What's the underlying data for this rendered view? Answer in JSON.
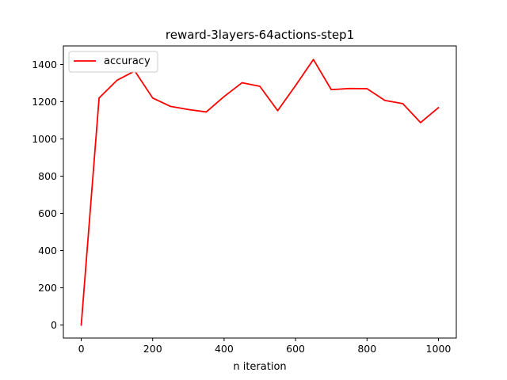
{
  "chart_data": {
    "type": "line",
    "title": "reward-3layers-64actions-step1",
    "xlabel": "n iteration",
    "ylabel": "",
    "xlim": [
      -50,
      1050
    ],
    "ylim": [
      -70,
      1500
    ],
    "x_ticks": [
      0,
      200,
      400,
      600,
      800,
      1000
    ],
    "y_ticks": [
      0,
      200,
      400,
      600,
      800,
      1000,
      1200,
      1400
    ],
    "grid": false,
    "legend_position": "upper-left",
    "series": [
      {
        "name": "accuracy",
        "color": "#ff0000",
        "x": [
          0,
          50,
          100,
          150,
          200,
          250,
          300,
          350,
          400,
          450,
          500,
          550,
          600,
          650,
          700,
          750,
          800,
          850,
          900,
          950,
          1000
        ],
        "y": [
          0,
          1220,
          1315,
          1365,
          1220,
          1175,
          1158,
          1145,
          1228,
          1302,
          1283,
          1152,
          1287,
          1427,
          1265,
          1271,
          1270,
          1207,
          1190,
          1088,
          1168
        ]
      }
    ]
  }
}
